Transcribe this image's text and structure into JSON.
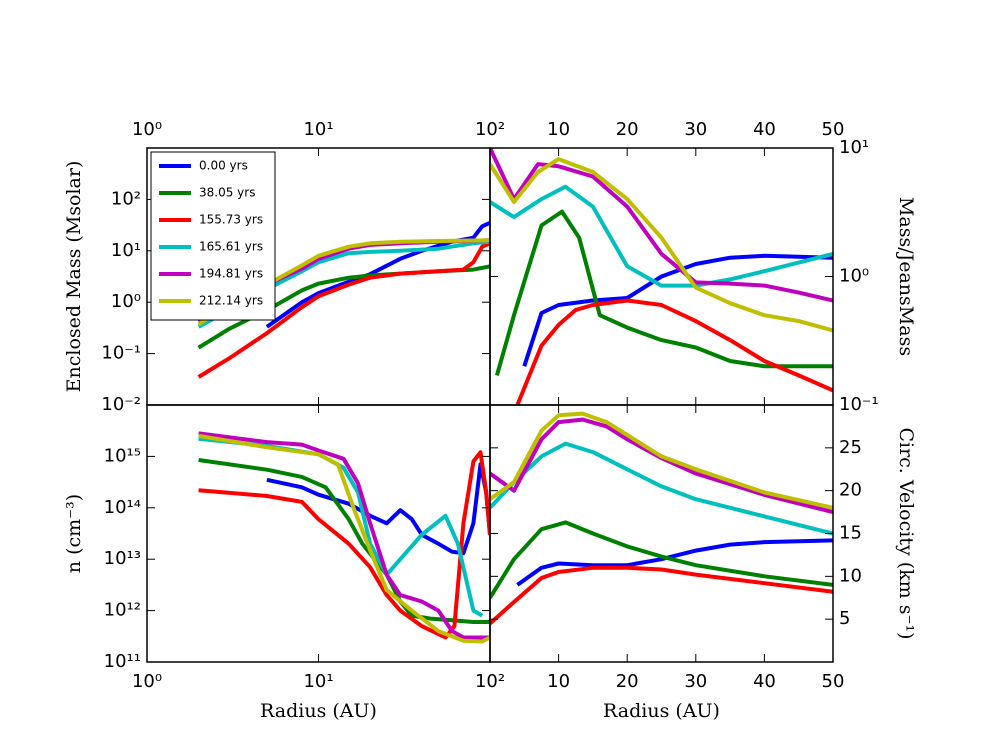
{
  "chart_data": [
    {
      "type": "line",
      "xscale": "log",
      "yscale": "log",
      "xaxis_position": "top",
      "yaxis_position": "left",
      "y_label": "Enclosed Mass (Msolar)",
      "legend": "upper left",
      "xlim": [
        1,
        100
      ],
      "ylim": [
        0.01,
        1000
      ],
      "xticks": [
        {
          "value": 1,
          "label": "10⁰"
        },
        {
          "value": 10,
          "label": "10¹"
        },
        {
          "value": 100,
          "label": "10²"
        }
      ],
      "yticks": [
        {
          "value": 0.01,
          "label": "10⁻²"
        },
        {
          "value": 0.1,
          "label": "10⁻¹"
        },
        {
          "value": 1,
          "label": "10⁰"
        },
        {
          "value": 10,
          "label": "10¹"
        },
        {
          "value": 100,
          "label": "10²"
        }
      ],
      "series": [
        {
          "name": "0.00 yrs",
          "color": "#0000ff",
          "x": [
            5,
            8,
            10,
            15,
            20,
            30,
            40,
            60,
            80,
            90,
            100
          ],
          "values": [
            0.33,
            1.0,
            1.5,
            2.5,
            3.5,
            7,
            10,
            15,
            18,
            30,
            35
          ]
        },
        {
          "name": "38.05 yrs",
          "color": "#008000",
          "x": [
            2,
            3,
            5,
            8,
            10,
            15,
            20,
            30,
            50,
            80,
            100
          ],
          "values": [
            0.13,
            0.3,
            0.7,
            1.7,
            2.3,
            3,
            3.3,
            3.6,
            4,
            4.3,
            5
          ]
        },
        {
          "name": "155.73 yrs",
          "color": "#ff0000",
          "x": [
            2,
            3,
            5,
            8,
            10,
            15,
            20,
            30,
            50,
            70,
            80,
            90,
            100
          ],
          "values": [
            0.035,
            0.08,
            0.25,
            0.8,
            1.3,
            2.2,
            3.0,
            3.6,
            4,
            4.3,
            6,
            12,
            14
          ]
        },
        {
          "name": "165.61 yrs",
          "color": "#00bfbf",
          "x": [
            2,
            3,
            5,
            8,
            10,
            15,
            20,
            30,
            50,
            80,
            100
          ],
          "values": [
            0.33,
            0.7,
            1.8,
            4,
            6,
            9,
            9.5,
            10,
            11,
            14,
            15
          ]
        },
        {
          "name": "194.81 yrs",
          "color": "#bf00bf",
          "x": [
            2,
            3,
            5,
            8,
            10,
            15,
            20,
            30,
            50,
            100
          ],
          "values": [
            0.42,
            0.9,
            2.2,
            4.5,
            7,
            11,
            13,
            14,
            15,
            16
          ]
        },
        {
          "name": "212.14 yrs",
          "color": "#bfbf00",
          "x": [
            2,
            3,
            5,
            8,
            10,
            15,
            20,
            30,
            50,
            100
          ],
          "values": [
            0.37,
            0.9,
            2.2,
            5.2,
            8,
            12,
            14,
            15,
            15.5,
            16
          ]
        }
      ]
    },
    {
      "type": "line",
      "xscale": "linear",
      "yscale": "log",
      "xaxis_position": "top",
      "yaxis_position": "right",
      "y_label": "Mass/JeansMass",
      "xlim": [
        0,
        50
      ],
      "ylim": [
        0.1,
        10
      ],
      "xticks": [
        10,
        20,
        30,
        40,
        50
      ],
      "yticks": [
        {
          "value": 0.1,
          "label": "10⁻¹"
        },
        {
          "value": 1,
          "label": "10⁰"
        },
        {
          "value": 10,
          "label": "10¹"
        }
      ],
      "series": [
        {
          "color": "#0000ff",
          "x": [
            5,
            7.5,
            10,
            15,
            20,
            25,
            30,
            35,
            40,
            50
          ],
          "values": [
            0.2,
            0.52,
            0.6,
            0.65,
            0.68,
            1.0,
            1.25,
            1.4,
            1.45,
            1.4
          ]
        },
        {
          "color": "#008000",
          "x": [
            1,
            3.5,
            7.5,
            10.5,
            13,
            16,
            20,
            25,
            30,
            35,
            40,
            50
          ],
          "values": [
            0.17,
            0.5,
            2.5,
            3.2,
            2,
            0.5,
            0.4,
            0.32,
            0.28,
            0.22,
            0.2,
            0.2
          ]
        },
        {
          "color": "#ff0000",
          "x": [
            4,
            7.5,
            10,
            12.5,
            15,
            20,
            25,
            30,
            35,
            40,
            45,
            50
          ],
          "values": [
            0.1,
            0.29,
            0.42,
            0.55,
            0.6,
            0.65,
            0.6,
            0.45,
            0.32,
            0.22,
            0.17,
            0.13
          ]
        },
        {
          "color": "#00bfbf",
          "x": [
            0,
            3.5,
            7.5,
            11,
            15,
            20,
            25,
            30,
            35,
            40,
            50
          ],
          "values": [
            3.8,
            2.9,
            4,
            5,
            3.5,
            1.2,
            0.85,
            0.85,
            0.95,
            1.1,
            1.5
          ]
        },
        {
          "color": "#bf00bf",
          "x": [
            0,
            3.5,
            7,
            10,
            15,
            20,
            25,
            30,
            35,
            40,
            45,
            50
          ],
          "values": [
            10,
            4,
            7.5,
            7.2,
            6,
            3.5,
            1.5,
            0.9,
            0.88,
            0.85,
            0.75,
            0.65
          ]
        },
        {
          "color": "#bfbf00",
          "x": [
            0,
            3.5,
            7,
            10,
            15,
            20,
            25,
            30,
            35,
            40,
            45,
            50
          ],
          "values": [
            7.5,
            3.8,
            6.5,
            8.2,
            6.5,
            4,
            2,
            0.82,
            0.62,
            0.5,
            0.45,
            0.38
          ]
        }
      ]
    },
    {
      "type": "line",
      "xscale": "log",
      "yscale": "log",
      "xaxis_position": "bottom",
      "yaxis_position": "left",
      "y_label": "n (cm⁻³)",
      "x_label": "Radius (AU)",
      "xlim": [
        1,
        100
      ],
      "ylim": [
        100000000000.0,
        1e+16
      ],
      "xticks": [
        {
          "value": 1,
          "label": "10⁰"
        },
        {
          "value": 10,
          "label": "10¹"
        },
        {
          "value": 100,
          "label": "10²"
        }
      ],
      "yticks": [
        {
          "value": 100000000000.0,
          "label": "10¹¹"
        },
        {
          "value": 1000000000000.0,
          "label": "10¹²"
        },
        {
          "value": 10000000000000.0,
          "label": "10¹³"
        },
        {
          "value": 100000000000000.0,
          "label": "10¹⁴"
        },
        {
          "value": 1000000000000000.0,
          "label": "10¹⁵"
        }
      ],
      "series": [
        {
          "color": "#0000ff",
          "x": [
            5,
            8,
            10,
            15,
            20,
            25,
            30,
            35,
            40,
            50,
            60,
            70,
            80,
            88,
            95,
            100
          ],
          "values": [
            350000000000000.0,
            250000000000000.0,
            180000000000000.0,
            120000000000000.0,
            70000000000000.0,
            50000000000000.0,
            90000000000000.0,
            60000000000000.0,
            30000000000000.0,
            20000000000000.0,
            14000000000000.0,
            13000000000000.0,
            50000000000000.0,
            700000000000000.0,
            200000000000000.0,
            30000000000000.0
          ]
        },
        {
          "color": "#008000",
          "x": [
            2,
            5,
            8,
            11,
            15,
            18,
            25,
            30,
            35,
            45,
            60,
            80,
            100
          ],
          "values": [
            850000000000000.0,
            550000000000000.0,
            400000000000000.0,
            250000000000000.0,
            60000000000000.0,
            20000000000000.0,
            5000000000000.0,
            1500000000000.0,
            800000000000.0,
            700000000000.0,
            650000000000.0,
            600000000000.0,
            600000000000.0
          ]
        },
        {
          "color": "#ff0000",
          "x": [
            2,
            5,
            8,
            10,
            15,
            20,
            25,
            30,
            40,
            55,
            62,
            70,
            80,
            88,
            95,
            100
          ],
          "values": [
            220000000000000.0,
            170000000000000.0,
            130000000000000.0,
            60000000000000.0,
            20000000000000.0,
            7000000000000.0,
            2000000000000.0,
            1000000000000.0,
            500000000000.0,
            300000000000.0,
            500000000000.0,
            50000000000000.0,
            800000000000000.0,
            1200000000000000.0,
            200000000000000.0,
            30000000000000.0
          ]
        },
        {
          "color": "#00bfbf",
          "x": [
            2,
            5,
            10,
            14,
            17,
            20,
            25,
            30,
            40,
            55,
            65,
            80,
            90
          ],
          "values": [
            2200000000000000.0,
            1600000000000000.0,
            1100000000000000.0,
            600000000000000.0,
            200000000000000.0,
            20000000000000.0,
            5000000000000.0,
            10000000000000.0,
            30000000000000.0,
            70000000000000.0,
            20000000000000.0,
            1000000000000.0,
            800000000000.0
          ]
        },
        {
          "color": "#bf00bf",
          "x": [
            2,
            5,
            8,
            10,
            14,
            17,
            20,
            25,
            30,
            40,
            50,
            60,
            70,
            100
          ],
          "values": [
            2800000000000000.0,
            1900000000000000.0,
            1700000000000000.0,
            1300000000000000.0,
            900000000000000.0,
            300000000000000.0,
            50000000000000.0,
            5000000000000.0,
            2000000000000.0,
            1500000000000.0,
            1000000000000.0,
            400000000000.0,
            300000000000.0,
            300000000000.0
          ]
        },
        {
          "color": "#bfbf00",
          "x": [
            2,
            5,
            10,
            13,
            16,
            20,
            25,
            35,
            50,
            70,
            90,
            100
          ],
          "values": [
            2500000000000000.0,
            1500000000000000.0,
            1100000000000000.0,
            700000000000000.0,
            100000000000000.0,
            15000000000000.0,
            2500000000000.0,
            1000000000000.0,
            400000000000.0,
            260000000000.0,
            250000000000.0,
            300000000000.0
          ]
        }
      ]
    },
    {
      "type": "line",
      "xscale": "linear",
      "yscale": "linear",
      "xaxis_position": "bottom",
      "yaxis_position": "right",
      "y_label": "Circ. Velocity (km s⁻¹)",
      "x_label": "Radius (AU)",
      "xlim": [
        0,
        50
      ],
      "ylim": [
        0,
        30
      ],
      "xticks": [
        10,
        20,
        30,
        40,
        50
      ],
      "yticks": [
        5,
        10,
        15,
        20,
        25
      ],
      "series": [
        {
          "color": "#0000ff",
          "x": [
            4,
            7.5,
            10,
            15,
            20,
            25,
            30,
            35,
            40,
            50
          ],
          "values": [
            9,
            11,
            11.5,
            11.3,
            11.3,
            12,
            13,
            13.7,
            14,
            14.2
          ]
        },
        {
          "color": "#008000",
          "x": [
            0,
            3.5,
            7.5,
            11,
            15,
            20,
            25,
            30,
            40,
            50
          ],
          "values": [
            7.5,
            12,
            15.5,
            16.3,
            15,
            13.5,
            12.3,
            11.3,
            10,
            9
          ]
        },
        {
          "color": "#ff0000",
          "x": [
            0,
            3.5,
            7.5,
            10,
            15,
            20,
            25,
            30,
            40,
            50
          ],
          "values": [
            4.5,
            7,
            9.8,
            10.5,
            11,
            11,
            10.8,
            10.2,
            9.2,
            8.2
          ]
        },
        {
          "color": "#00bfbf",
          "x": [
            0,
            3.5,
            7.5,
            11,
            15,
            20,
            25,
            30,
            40,
            50
          ],
          "values": [
            18,
            21,
            24,
            25.5,
            24.5,
            22.5,
            20.5,
            19,
            17,
            15
          ]
        },
        {
          "color": "#bf00bf",
          "x": [
            0,
            3.5,
            7.5,
            10,
            13.5,
            17,
            20,
            25,
            30,
            40,
            50
          ],
          "values": [
            22,
            20,
            26,
            28,
            28.3,
            27.5,
            26,
            23.8,
            22,
            19.5,
            17.5
          ]
        },
        {
          "color": "#bfbf00",
          "x": [
            0,
            3.5,
            7.5,
            10,
            13.5,
            17,
            20,
            25,
            30,
            40,
            50
          ],
          "values": [
            19,
            21,
            27,
            28.8,
            29,
            28,
            26.5,
            24,
            22.5,
            19.8,
            18
          ]
        }
      ]
    }
  ]
}
